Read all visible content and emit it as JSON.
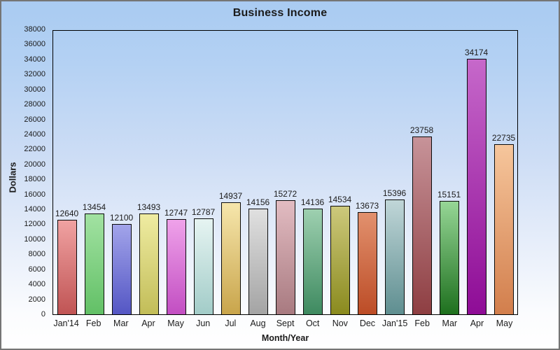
{
  "window": {
    "border_color": "#757575",
    "background_top_color": "#a9cbf2",
    "background_bottom_color": "#ffffff",
    "text_color": "#1b1b1b"
  },
  "chart_data": {
    "type": "bar",
    "title": "Business Income",
    "xlabel": "Month/Year",
    "ylabel": "Dollars",
    "categories": [
      "Jan'14",
      "Feb",
      "Mar",
      "Apr",
      "May",
      "Jun",
      "Jul",
      "Aug",
      "Sept",
      "Oct",
      "Nov",
      "Dec",
      "Jan'15",
      "Feb",
      "Mar",
      "Apr",
      "May"
    ],
    "values": [
      12640,
      13454,
      12100,
      13493,
      12747,
      12787,
      14937,
      14156,
      15272,
      14136,
      14534,
      13673,
      15396,
      23758,
      15151,
      34174,
      22735
    ],
    "value_labels_shown": true,
    "ylim": [
      0,
      38000
    ],
    "ytick_step": 2000,
    "grid": false,
    "legend": "none",
    "bar_border_color": "#0a0a0a",
    "bar_colors": [
      {
        "top": "#f0a2a2",
        "bottom": "#c05454"
      },
      {
        "top": "#a2e2a2",
        "bottom": "#62c066"
      },
      {
        "top": "#a2a4ea",
        "bottom": "#5456c4"
      },
      {
        "top": "#efeca2",
        "bottom": "#c2bd58"
      },
      {
        "top": "#efa2ea",
        "bottom": "#c24ec2"
      },
      {
        "top": "#e6f4f2",
        "bottom": "#a2ccc8"
      },
      {
        "top": "#f6e6ac",
        "bottom": "#c9a54b"
      },
      {
        "top": "#e0e0e0",
        "bottom": "#a4a4a4"
      },
      {
        "top": "#e2bcc2",
        "bottom": "#a87a80"
      },
      {
        "top": "#9ed0b0",
        "bottom": "#3e8a60"
      },
      {
        "top": "#cdc97c",
        "bottom": "#8a8a1e"
      },
      {
        "top": "#e2916e",
        "bottom": "#bc4c26"
      },
      {
        "top": "#c0d6d8",
        "bottom": "#5e8e90"
      },
      {
        "top": "#c79399",
        "bottom": "#8e3e42"
      },
      {
        "top": "#96d696",
        "bottom": "#1e701e"
      },
      {
        "top": "#c668ca",
        "bottom": "#8e0c96"
      },
      {
        "top": "#f6c69c",
        "bottom": "#d27e4c"
      }
    ]
  }
}
